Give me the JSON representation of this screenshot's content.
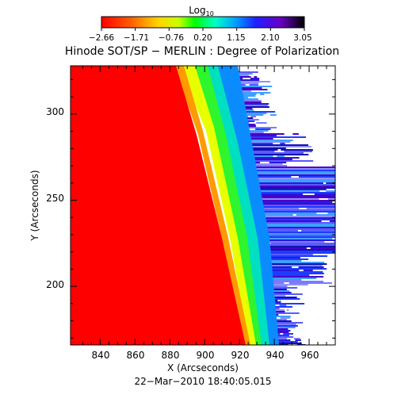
{
  "colorbar": {
    "label_base": "Log",
    "label_sub": "10",
    "tick_labels": [
      "−2.66",
      "−1.71",
      "−0.76",
      "0.20",
      "1.15",
      "2.10",
      "3.05"
    ]
  },
  "title": "Hinode SOT/SP − MERLIN : Degree of Polarization",
  "x_axis": {
    "label": "X (Arcseconds)",
    "range": [
      823,
      975
    ],
    "tick_labels": [
      "840",
      "860",
      "880",
      "900",
      "920",
      "940",
      "960"
    ],
    "tick_values": [
      840,
      860,
      880,
      900,
      920,
      940,
      960
    ]
  },
  "y_axis": {
    "label": "Y (Arcseconds)",
    "range": [
      166,
      328
    ],
    "tick_labels": [
      "200",
      "250",
      "300"
    ],
    "tick_values": [
      200,
      250,
      300
    ]
  },
  "timestamp": "22−Mar−2010 18:40:05.015",
  "colormap": "rainbow-red-to-black",
  "image_content": "off-limb polarization map: red solar disk on left, rainbow limb band, noisy blue/purple streaks off-limb, white background above limb"
}
